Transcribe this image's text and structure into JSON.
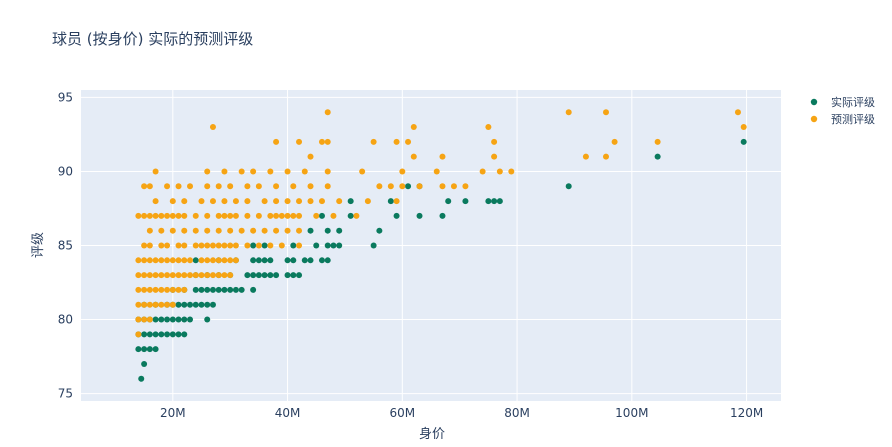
{
  "chart_data": {
    "type": "scatter",
    "title": "球员 (按身价) 实际的预测评级",
    "xlabel": "身价",
    "ylabel": "评级",
    "xlim": [
      4,
      126
    ],
    "ylim": [
      74.5,
      95.5
    ],
    "x_ticks": [
      20,
      40,
      60,
      80,
      100,
      120
    ],
    "x_tick_labels": [
      "20M",
      "40M",
      "60M",
      "80M",
      "100M",
      "120M"
    ],
    "y_ticks": [
      75,
      80,
      85,
      90,
      95
    ],
    "y_tick_labels": [
      "75",
      "80",
      "85",
      "90",
      "95"
    ],
    "grid": true,
    "legend": "top-right",
    "background": "#e5ecf6",
    "series": [
      {
        "name": "实际评级",
        "color": "#0a7a5e",
        "points": [
          [
            14.5,
            76
          ],
          [
            15,
            77
          ],
          [
            14,
            78
          ],
          [
            15,
            78
          ],
          [
            16,
            78
          ],
          [
            17,
            78
          ],
          [
            14,
            79
          ],
          [
            15,
            79
          ],
          [
            16,
            79
          ],
          [
            17,
            79
          ],
          [
            18,
            79
          ],
          [
            19,
            79
          ],
          [
            20,
            79
          ],
          [
            21,
            79
          ],
          [
            22,
            79
          ],
          [
            14,
            80
          ],
          [
            15,
            80
          ],
          [
            16,
            80
          ],
          [
            17,
            80
          ],
          [
            18,
            80
          ],
          [
            19,
            80
          ],
          [
            20,
            80
          ],
          [
            21,
            80
          ],
          [
            22,
            80
          ],
          [
            23,
            80
          ],
          [
            26,
            80
          ],
          [
            15,
            81
          ],
          [
            17,
            81
          ],
          [
            19,
            81
          ],
          [
            20,
            81
          ],
          [
            21,
            81
          ],
          [
            22,
            81
          ],
          [
            23,
            81
          ],
          [
            24,
            81
          ],
          [
            25,
            81
          ],
          [
            26,
            81
          ],
          [
            27,
            81
          ],
          [
            20,
            82
          ],
          [
            22,
            82
          ],
          [
            24,
            82
          ],
          [
            25,
            82
          ],
          [
            26,
            82
          ],
          [
            27,
            82
          ],
          [
            28,
            82
          ],
          [
            29,
            82
          ],
          [
            30,
            82
          ],
          [
            31,
            82
          ],
          [
            32,
            82
          ],
          [
            34,
            82
          ],
          [
            24,
            83
          ],
          [
            26,
            83
          ],
          [
            28,
            83
          ],
          [
            30,
            83
          ],
          [
            33,
            83
          ],
          [
            34,
            83
          ],
          [
            35,
            83
          ],
          [
            36,
            83
          ],
          [
            37,
            83
          ],
          [
            38,
            83
          ],
          [
            40,
            83
          ],
          [
            41,
            83
          ],
          [
            42,
            83
          ],
          [
            24,
            84
          ],
          [
            28,
            84
          ],
          [
            31,
            84
          ],
          [
            34,
            84
          ],
          [
            35,
            84
          ],
          [
            36,
            84
          ],
          [
            37,
            84
          ],
          [
            40,
            84
          ],
          [
            41,
            84
          ],
          [
            43,
            84
          ],
          [
            44,
            84
          ],
          [
            46,
            84
          ],
          [
            47,
            84
          ],
          [
            34,
            85
          ],
          [
            36,
            85
          ],
          [
            41,
            85
          ],
          [
            45,
            85
          ],
          [
            47,
            85
          ],
          [
            48,
            85
          ],
          [
            49,
            85
          ],
          [
            55,
            85
          ],
          [
            44,
            86
          ],
          [
            47,
            86
          ],
          [
            49,
            86
          ],
          [
            56,
            86
          ],
          [
            46,
            87
          ],
          [
            51,
            87
          ],
          [
            59,
            87
          ],
          [
            63,
            87
          ],
          [
            67,
            87
          ],
          [
            51,
            88
          ],
          [
            58,
            88
          ],
          [
            68,
            88
          ],
          [
            71,
            88
          ],
          [
            75,
            88
          ],
          [
            76,
            88
          ],
          [
            77,
            88
          ],
          [
            61,
            89
          ],
          [
            63,
            89
          ],
          [
            89,
            89
          ],
          [
            104.5,
            91
          ],
          [
            119.5,
            92
          ]
        ]
      },
      {
        "name": "预测评级",
        "color": "#f6a414",
        "points": [
          [
            14,
            79
          ],
          [
            14,
            80
          ],
          [
            15,
            80
          ],
          [
            16,
            80
          ],
          [
            14,
            81
          ],
          [
            15,
            81
          ],
          [
            16,
            81
          ],
          [
            17,
            81
          ],
          [
            18,
            81
          ],
          [
            19,
            81
          ],
          [
            20,
            81
          ],
          [
            14,
            82
          ],
          [
            15,
            82
          ],
          [
            16,
            82
          ],
          [
            17,
            82
          ],
          [
            18,
            82
          ],
          [
            19,
            82
          ],
          [
            20,
            82
          ],
          [
            21,
            82
          ],
          [
            22,
            82
          ],
          [
            14,
            83
          ],
          [
            15,
            83
          ],
          [
            16,
            83
          ],
          [
            17,
            83
          ],
          [
            18,
            83
          ],
          [
            19,
            83
          ],
          [
            20,
            83
          ],
          [
            21,
            83
          ],
          [
            22,
            83
          ],
          [
            23,
            83
          ],
          [
            24,
            83
          ],
          [
            25,
            83
          ],
          [
            26,
            83
          ],
          [
            27,
            83
          ],
          [
            28,
            83
          ],
          [
            29,
            83
          ],
          [
            30,
            83
          ],
          [
            14,
            84
          ],
          [
            15,
            84
          ],
          [
            16,
            84
          ],
          [
            17,
            84
          ],
          [
            18,
            84
          ],
          [
            19,
            84
          ],
          [
            20,
            84
          ],
          [
            21,
            84
          ],
          [
            22,
            84
          ],
          [
            23,
            84
          ],
          [
            25,
            84
          ],
          [
            26,
            84
          ],
          [
            27,
            84
          ],
          [
            28,
            84
          ],
          [
            29,
            84
          ],
          [
            30,
            84
          ],
          [
            31,
            84
          ],
          [
            15,
            85
          ],
          [
            16,
            85
          ],
          [
            18,
            85
          ],
          [
            19,
            85
          ],
          [
            21,
            85
          ],
          [
            22,
            85
          ],
          [
            24,
            85
          ],
          [
            25,
            85
          ],
          [
            26,
            85
          ],
          [
            27,
            85
          ],
          [
            28,
            85
          ],
          [
            29,
            85
          ],
          [
            30,
            85
          ],
          [
            31,
            85
          ],
          [
            33,
            85
          ],
          [
            35,
            85
          ],
          [
            37,
            85
          ],
          [
            39,
            85
          ],
          [
            42,
            85
          ],
          [
            16,
            86
          ],
          [
            18,
            86
          ],
          [
            20,
            86
          ],
          [
            22,
            86
          ],
          [
            24,
            86
          ],
          [
            26,
            86
          ],
          [
            28,
            86
          ],
          [
            30,
            86
          ],
          [
            32,
            86
          ],
          [
            34,
            86
          ],
          [
            36,
            86
          ],
          [
            38,
            86
          ],
          [
            40,
            86
          ],
          [
            42,
            86
          ],
          [
            14,
            87
          ],
          [
            15,
            87
          ],
          [
            16,
            87
          ],
          [
            17,
            87
          ],
          [
            18,
            87
          ],
          [
            19,
            87
          ],
          [
            20,
            87
          ],
          [
            21,
            87
          ],
          [
            22,
            87
          ],
          [
            24,
            87
          ],
          [
            26,
            87
          ],
          [
            28,
            87
          ],
          [
            29,
            87
          ],
          [
            30,
            87
          ],
          [
            31,
            87
          ],
          [
            33,
            87
          ],
          [
            35,
            87
          ],
          [
            37,
            87
          ],
          [
            38,
            87
          ],
          [
            39,
            87
          ],
          [
            40,
            87
          ],
          [
            41,
            87
          ],
          [
            42,
            87
          ],
          [
            45,
            87
          ],
          [
            48,
            87
          ],
          [
            52,
            87
          ],
          [
            17,
            88
          ],
          [
            20,
            88
          ],
          [
            22,
            88
          ],
          [
            25,
            88
          ],
          [
            27,
            88
          ],
          [
            29,
            88
          ],
          [
            31,
            88
          ],
          [
            33,
            88
          ],
          [
            36,
            88
          ],
          [
            38,
            88
          ],
          [
            40,
            88
          ],
          [
            42,
            88
          ],
          [
            44,
            88
          ],
          [
            46,
            88
          ],
          [
            49,
            88
          ],
          [
            54,
            88
          ],
          [
            59,
            88
          ],
          [
            15,
            89
          ],
          [
            16,
            89
          ],
          [
            19,
            89
          ],
          [
            21,
            89
          ],
          [
            23,
            89
          ],
          [
            26,
            89
          ],
          [
            28,
            89
          ],
          [
            30,
            89
          ],
          [
            33,
            89
          ],
          [
            35,
            89
          ],
          [
            38,
            89
          ],
          [
            41,
            89
          ],
          [
            44,
            89
          ],
          [
            47,
            89
          ],
          [
            56,
            89
          ],
          [
            58,
            89
          ],
          [
            60,
            89
          ],
          [
            63,
            89
          ],
          [
            67,
            89
          ],
          [
            69,
            89
          ],
          [
            71,
            89
          ],
          [
            17,
            90
          ],
          [
            26,
            90
          ],
          [
            29,
            90
          ],
          [
            32,
            90
          ],
          [
            34,
            90
          ],
          [
            37,
            90
          ],
          [
            40,
            90
          ],
          [
            43,
            90
          ],
          [
            47,
            90
          ],
          [
            53,
            90
          ],
          [
            60,
            90
          ],
          [
            66,
            90
          ],
          [
            74,
            90
          ],
          [
            77,
            90
          ],
          [
            79,
            90
          ],
          [
            44,
            91
          ],
          [
            62,
            91
          ],
          [
            67,
            91
          ],
          [
            76,
            91
          ],
          [
            92,
            91
          ],
          [
            95.5,
            91
          ],
          [
            38,
            92
          ],
          [
            42,
            92
          ],
          [
            46,
            92
          ],
          [
            47,
            92
          ],
          [
            55,
            92
          ],
          [
            59,
            92
          ],
          [
            61,
            92
          ],
          [
            76,
            92
          ],
          [
            97,
            92
          ],
          [
            104.5,
            92
          ],
          [
            62,
            93
          ],
          [
            75,
            93
          ],
          [
            119.5,
            93
          ],
          [
            27,
            93
          ],
          [
            47,
            94
          ],
          [
            89,
            94
          ],
          [
            95.5,
            94
          ],
          [
            118.5,
            94
          ]
        ]
      }
    ]
  }
}
